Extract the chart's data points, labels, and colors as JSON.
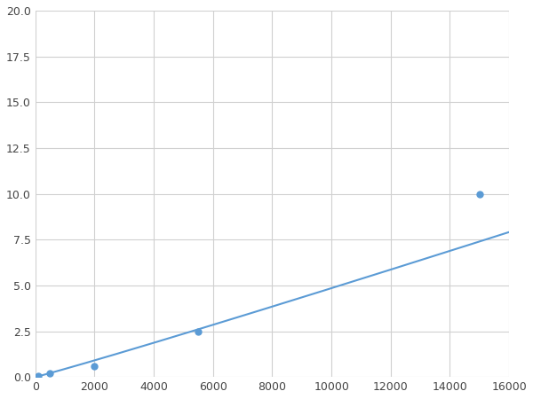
{
  "x": [
    100,
    500,
    2000,
    5500,
    15000
  ],
  "y": [
    0.05,
    0.2,
    0.6,
    2.5,
    10.0
  ],
  "line_color": "#5b9bd5",
  "marker_color": "#5b9bd5",
  "marker_size": 5,
  "line_width": 1.5,
  "xlim": [
    0,
    16000
  ],
  "ylim": [
    0,
    20.0
  ],
  "xticks": [
    0,
    2000,
    4000,
    6000,
    8000,
    10000,
    12000,
    14000,
    16000
  ],
  "yticks": [
    0.0,
    2.5,
    5.0,
    7.5,
    10.0,
    12.5,
    15.0,
    17.5,
    20.0
  ],
  "grid_color": "#d0d0d0",
  "background_color": "#ffffff",
  "figsize": [
    6.0,
    4.5
  ],
  "dpi": 100
}
